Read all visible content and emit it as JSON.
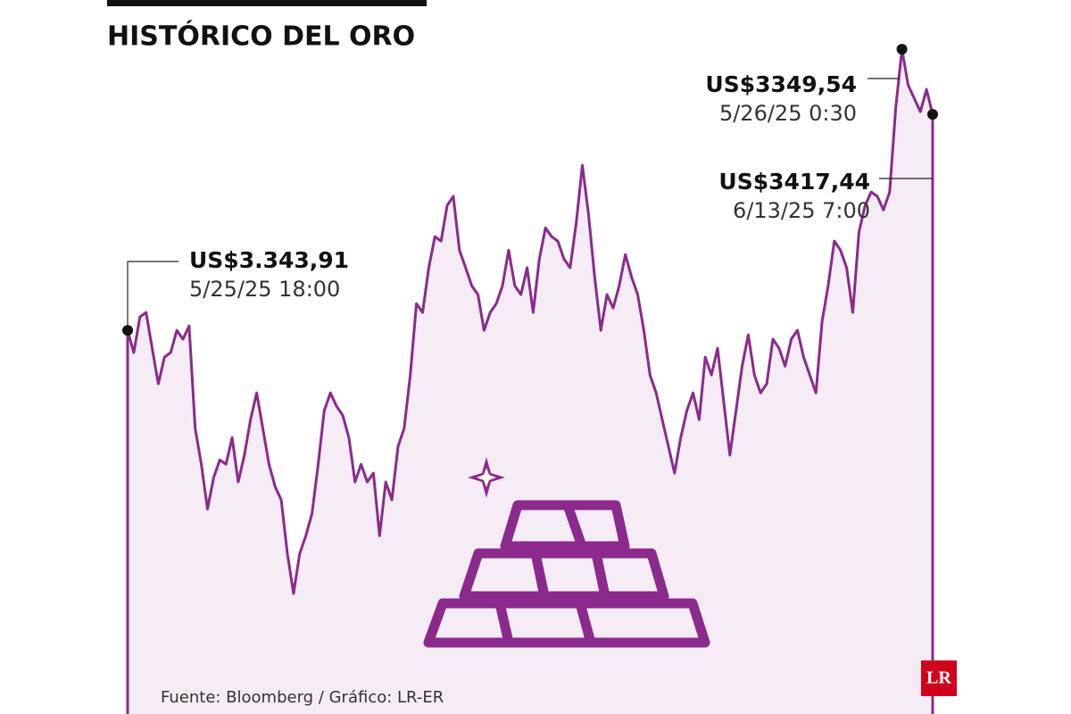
{
  "chart_data": {
    "type": "area",
    "title": "HISTÓRICO DEL ORO",
    "source": "Fuente: Bloomberg / Gráfico: LR-ER",
    "logo": "LR",
    "color": "#8b2a8c",
    "fill": "#f6ecf5",
    "ylim": [
      3213.3,
      3444.2
    ],
    "values": [
      3343.91,
      3336.3,
      3348.5,
      3350.0,
      3337.8,
      3325.7,
      3334.8,
      3336.3,
      3343.9,
      3340.9,
      3345.4,
      3310.5,
      3298.3,
      3283.1,
      3293.8,
      3299.8,
      3298.3,
      3307.4,
      3292.3,
      3301.4,
      3313.5,
      3322.6,
      3310.5,
      3298.3,
      3290.7,
      3286.2,
      3267.9,
      3254.3,
      3267.9,
      3274.0,
      3281.6,
      3298.3,
      3316.6,
      3322.6,
      3318.1,
      3315.0,
      3307.4,
      3292.3,
      3298.3,
      3292.3,
      3295.3,
      3274.0,
      3292.3,
      3286.2,
      3304.4,
      3310.5,
      3328.7,
      3353.0,
      3350.0,
      3365.2,
      3375.8,
      3374.3,
      3386.4,
      3389.5,
      3371.2,
      3365.2,
      3359.1,
      3356.1,
      3343.9,
      3350.0,
      3353.0,
      3359.1,
      3371.2,
      3359.1,
      3356.1,
      3365.2,
      3350.0,
      3368.2,
      3378.8,
      3375.8,
      3374.3,
      3368.2,
      3365.2,
      3380.4,
      3400.1,
      3383.4,
      3362.1,
      3343.9,
      3356.1,
      3351.5,
      3359.1,
      3369.7,
      3362.1,
      3356.1,
      3343.9,
      3328.7,
      3322.6,
      3313.5,
      3304.4,
      3295.3,
      3307.4,
      3316.6,
      3322.6,
      3313.5,
      3334.8,
      3328.7,
      3337.8,
      3319.6,
      3301.4,
      3316.6,
      3331.7,
      3342.4,
      3328.7,
      3322.6,
      3325.7,
      3340.9,
      3337.8,
      3331.7,
      3340.9,
      3343.9,
      3334.8,
      3328.7,
      3322.6,
      3346.9,
      3359.1,
      3374.3,
      3371.2,
      3365.2,
      3350.0,
      3377.3,
      3386.4,
      3391.0,
      3389.5,
      3384.9,
      3391.0,
      3419.9,
      3439.6,
      3427.4,
      3422.9,
      3418.3,
      3425.9,
      3417.44
    ],
    "annotations": [
      {
        "value": "US$3.343,91",
        "date": "5/25/25 18:00"
      },
      {
        "value": "US$3349,54",
        "date": "5/26/25 0:30"
      },
      {
        "value": "US$3417,44",
        "date": "6/13/25 7:00"
      }
    ]
  }
}
